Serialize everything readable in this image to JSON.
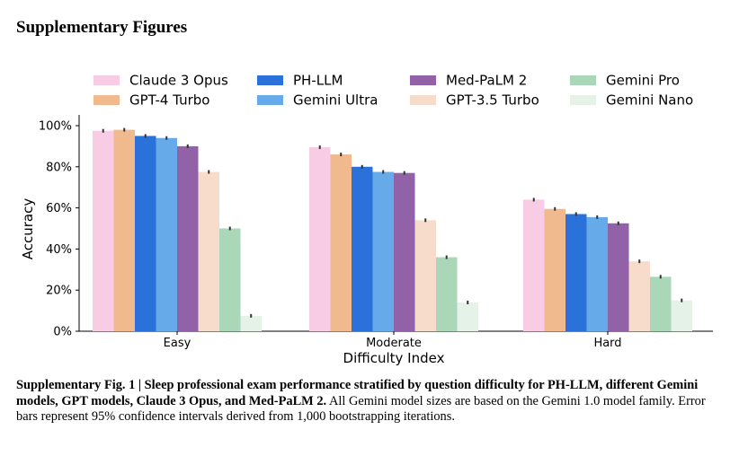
{
  "section_title": "Supplementary Figures",
  "caption": {
    "label": "Supplementary Fig. 1 | Sleep professional exam performance stratified by question difficulty for PH-LLM, different Gemini models, GPT models, Claude 3 Opus, and Med-PaLM 2.",
    "body": " All Gemini model sizes are based on the Gemini 1.0 model family. Error bars represent 95% confidence intervals derived from 1,000 bootstrapping iterations."
  },
  "chart_data": {
    "type": "bar",
    "xlabel": "Difficulty Index",
    "ylabel": "Accuracy",
    "ylim": [
      0,
      100
    ],
    "yticks": [
      0,
      20,
      40,
      60,
      80,
      100
    ],
    "ytick_labels": [
      "0%",
      "20%",
      "40%",
      "60%",
      "80%",
      "100%"
    ],
    "categories": [
      "Easy",
      "Moderate",
      "Hard"
    ],
    "legend_position": "top",
    "legend_columns": 4,
    "error_bars": true,
    "series": [
      {
        "name": "Claude 3 Opus",
        "color": "#f8cce4",
        "values": [
          97.5,
          89.5,
          64.0
        ]
      },
      {
        "name": "GPT-4 Turbo",
        "color": "#f0b98e",
        "values": [
          98.0,
          86.0,
          59.5
        ]
      },
      {
        "name": "PH-LLM",
        "color": "#2a71d9",
        "values": [
          95.0,
          80.0,
          57.0
        ]
      },
      {
        "name": "Gemini Ultra",
        "color": "#67aae9",
        "values": [
          94.0,
          77.5,
          55.5
        ]
      },
      {
        "name": "Med-PaLM 2",
        "color": "#9162a8",
        "values": [
          90.0,
          77.0,
          52.5
        ]
      },
      {
        "name": "GPT-3.5 Turbo",
        "color": "#f8dccb",
        "values": [
          77.5,
          54.0,
          34.0
        ]
      },
      {
        "name": "Gemini Pro",
        "color": "#a9d7b7",
        "values": [
          50.0,
          36.0,
          26.5
        ]
      },
      {
        "name": "Gemini Nano",
        "color": "#e4f2e8",
        "values": [
          7.5,
          14.0,
          15.0
        ]
      }
    ]
  }
}
